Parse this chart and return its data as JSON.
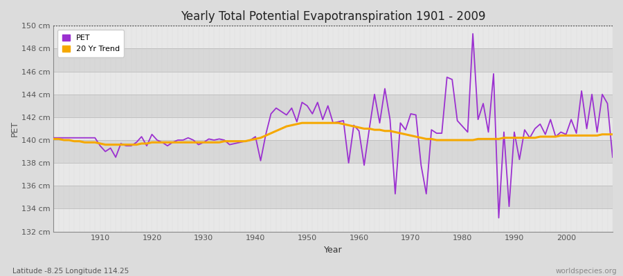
{
  "title": "Yearly Total Potential Evapotranspiration 1901 - 2009",
  "xlabel": "Year",
  "ylabel": "PET",
  "subtitle": "Latitude -8.25 Longitude 114.25",
  "watermark": "worldspecies.org",
  "pet_color": "#9b30d0",
  "trend_color": "#f5a800",
  "bg_color": "#dcdcdc",
  "plot_bg": "#dcdcdc",
  "ylim": [
    132,
    150
  ],
  "xlim": [
    1901,
    2009
  ],
  "yticks": [
    132,
    134,
    136,
    138,
    140,
    142,
    144,
    146,
    148,
    150
  ],
  "xticks": [
    1910,
    1920,
    1930,
    1940,
    1950,
    1960,
    1970,
    1980,
    1990,
    2000
  ],
  "years": [
    1901,
    1902,
    1903,
    1904,
    1905,
    1906,
    1907,
    1908,
    1909,
    1910,
    1911,
    1912,
    1913,
    1914,
    1915,
    1916,
    1917,
    1918,
    1919,
    1920,
    1921,
    1922,
    1923,
    1924,
    1925,
    1926,
    1927,
    1928,
    1929,
    1930,
    1931,
    1932,
    1933,
    1934,
    1935,
    1936,
    1937,
    1938,
    1939,
    1940,
    1941,
    1942,
    1943,
    1944,
    1945,
    1946,
    1947,
    1948,
    1949,
    1950,
    1951,
    1952,
    1953,
    1954,
    1955,
    1956,
    1957,
    1958,
    1959,
    1960,
    1961,
    1962,
    1963,
    1964,
    1965,
    1966,
    1967,
    1968,
    1969,
    1970,
    1971,
    1972,
    1973,
    1974,
    1975,
    1976,
    1977,
    1978,
    1979,
    1980,
    1981,
    1982,
    1983,
    1984,
    1985,
    1986,
    1987,
    1988,
    1989,
    1990,
    1991,
    1992,
    1993,
    1994,
    1995,
    1996,
    1997,
    1998,
    1999,
    2000,
    2001,
    2002,
    2003,
    2004,
    2005,
    2006,
    2007,
    2008,
    2009
  ],
  "pet_values": [
    140.2,
    140.2,
    140.2,
    140.2,
    140.2,
    140.2,
    140.2,
    140.2,
    140.2,
    139.5,
    139.0,
    139.3,
    138.5,
    139.7,
    139.5,
    139.5,
    139.8,
    140.3,
    139.5,
    140.5,
    140.0,
    139.8,
    139.5,
    139.8,
    140.0,
    140.0,
    140.2,
    140.0,
    139.6,
    139.8,
    140.1,
    140.0,
    140.1,
    140.0,
    139.6,
    139.7,
    139.8,
    139.9,
    140.0,
    140.3,
    138.2,
    140.5,
    142.3,
    142.8,
    142.5,
    142.2,
    142.8,
    141.6,
    143.3,
    143.0,
    142.3,
    143.3,
    141.8,
    143.0,
    141.5,
    141.6,
    141.7,
    138.0,
    141.3,
    140.8,
    137.8,
    141.0,
    144.0,
    141.5,
    144.5,
    141.8,
    135.3,
    141.5,
    140.9,
    142.3,
    142.2,
    137.8,
    135.3,
    140.9,
    140.6,
    140.6,
    145.5,
    145.3,
    141.7,
    141.2,
    140.7,
    149.3,
    141.8,
    143.2,
    140.7,
    145.8,
    133.2,
    140.7,
    134.2,
    140.7,
    138.3,
    140.9,
    140.2,
    141.0,
    141.4,
    140.5,
    141.8,
    140.3,
    140.7,
    140.5,
    141.8,
    140.6,
    144.3,
    141.0,
    144.0,
    140.7,
    144.0,
    143.2,
    138.5
  ],
  "trend_values": [
    140.1,
    140.1,
    140.0,
    140.0,
    139.9,
    139.9,
    139.8,
    139.8,
    139.8,
    139.7,
    139.6,
    139.6,
    139.6,
    139.6,
    139.6,
    139.6,
    139.6,
    139.7,
    139.7,
    139.8,
    139.8,
    139.8,
    139.8,
    139.8,
    139.8,
    139.8,
    139.8,
    139.8,
    139.8,
    139.8,
    139.8,
    139.8,
    139.8,
    139.9,
    139.9,
    139.9,
    139.9,
    139.9,
    140.0,
    140.1,
    140.2,
    140.4,
    140.6,
    140.8,
    141.0,
    141.2,
    141.3,
    141.4,
    141.5,
    141.5,
    141.5,
    141.5,
    141.5,
    141.5,
    141.5,
    141.5,
    141.4,
    141.3,
    141.2,
    141.1,
    141.0,
    141.0,
    140.9,
    140.9,
    140.8,
    140.8,
    140.7,
    140.6,
    140.5,
    140.4,
    140.3,
    140.2,
    140.1,
    140.1,
    140.0,
    140.0,
    140.0,
    140.0,
    140.0,
    140.0,
    140.0,
    140.0,
    140.1,
    140.1,
    140.1,
    140.1,
    140.1,
    140.2,
    140.2,
    140.2,
    140.2,
    140.2,
    140.2,
    140.2,
    140.3,
    140.3,
    140.3,
    140.3,
    140.4,
    140.4,
    140.4,
    140.4,
    140.4,
    140.4,
    140.4,
    140.4,
    140.5,
    140.5,
    140.5
  ]
}
